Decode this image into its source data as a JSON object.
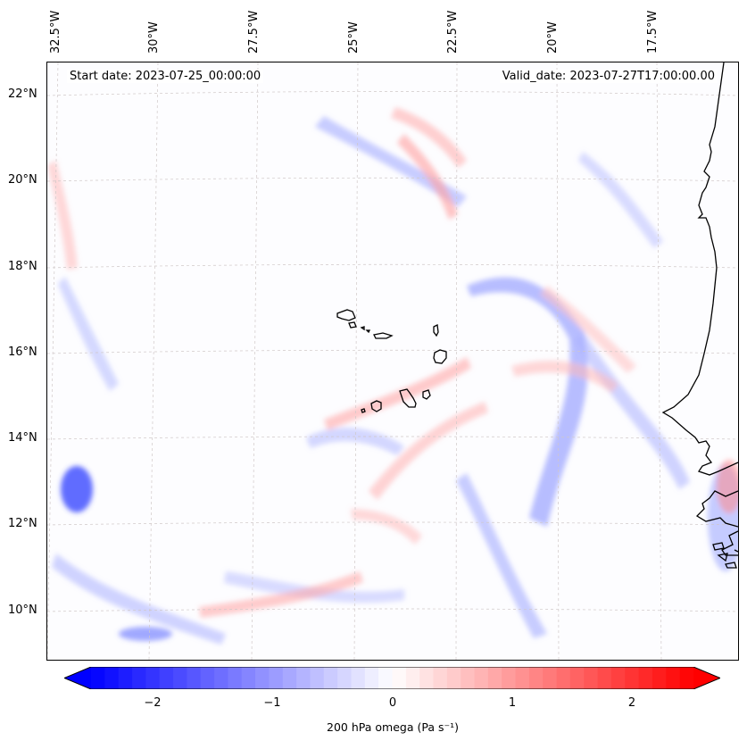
{
  "header": {
    "start_date": "Start date: 2023-07-25_00:00:00",
    "valid_date": "Valid_date: 2023-07-27T17:00:00.00"
  },
  "lon_ticks": [
    "32.5°W",
    "30°W",
    "27.5°W",
    "25°W",
    "22.5°W",
    "20°W",
    "17.5°W"
  ],
  "lat_ticks": [
    "22°N",
    "20°N",
    "18°N",
    "16°N",
    "14°N",
    "12°N",
    "10°N"
  ],
  "colorbar": {
    "min": -2.75,
    "max": 2.75,
    "ticks": [
      "−2",
      "−1",
      "0",
      "1",
      "2"
    ],
    "label": "200 hPa omega (Pa s⁻¹)",
    "colors": {
      "negative": "#0000ff",
      "zero": "#ffffff",
      "positive": "#ff0000"
    }
  },
  "map": {
    "field": "200 hPa omega",
    "extent_lon": [
      -32.5,
      -15.5
    ],
    "extent_lat": [
      9,
      22.5
    ],
    "coastline_color": "#000000",
    "gridline_color": "#c8c8c8"
  }
}
